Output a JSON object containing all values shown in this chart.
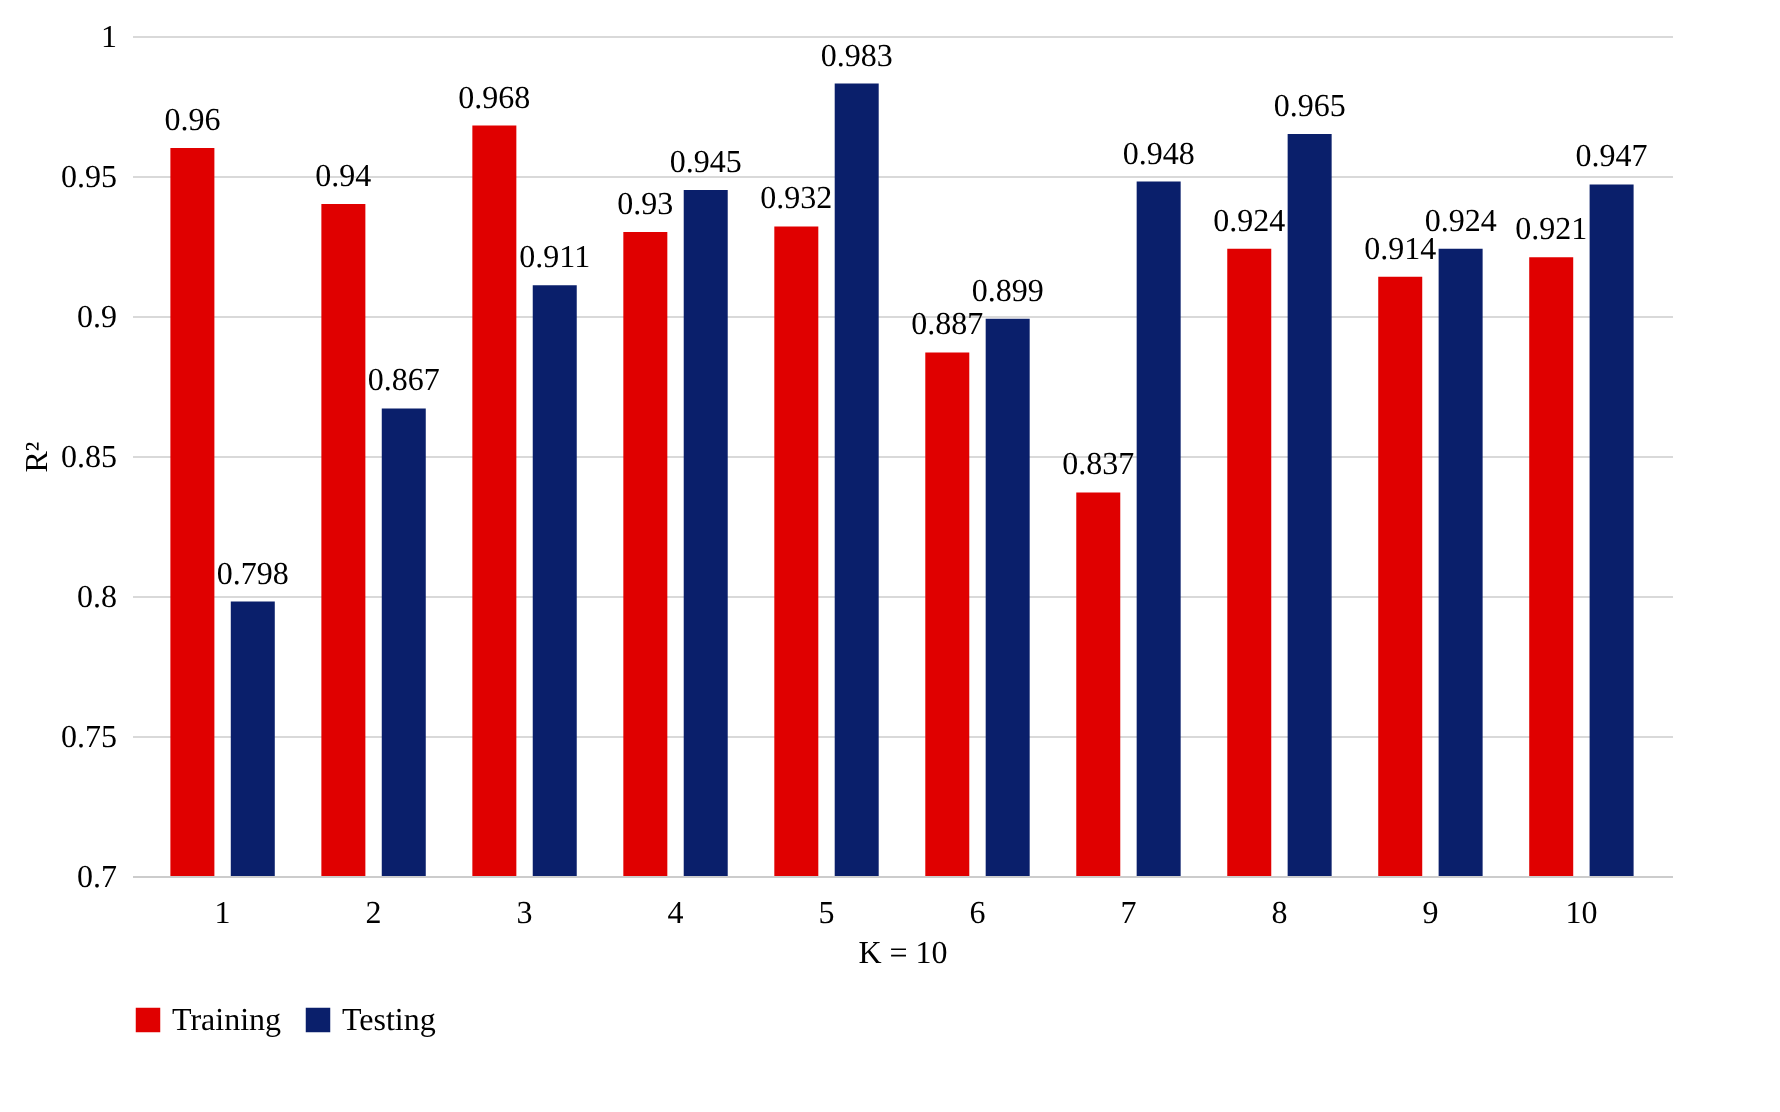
{
  "chart_data": {
    "type": "bar",
    "xlabel": "K = 10",
    "ylabel": "R²",
    "categories": [
      "1",
      "2",
      "3",
      "4",
      "5",
      "6",
      "7",
      "8",
      "9",
      "10"
    ],
    "series": [
      {
        "name": "Training",
        "color": "#e00000",
        "values": [
          0.96,
          0.94,
          0.968,
          0.93,
          0.932,
          0.887,
          0.837,
          0.924,
          0.914,
          0.921
        ]
      },
      {
        "name": "Testing",
        "color": "#0a1f6b",
        "values": [
          0.798,
          0.867,
          0.911,
          0.945,
          0.983,
          0.899,
          0.948,
          0.965,
          0.924,
          0.947
        ]
      }
    ],
    "ylim": [
      0.7,
      1
    ],
    "yticks": [
      0.7,
      0.75,
      0.8,
      0.85,
      0.9,
      0.95,
      1
    ],
    "grid": "y",
    "legend": "bottom",
    "data_labels": true
  }
}
